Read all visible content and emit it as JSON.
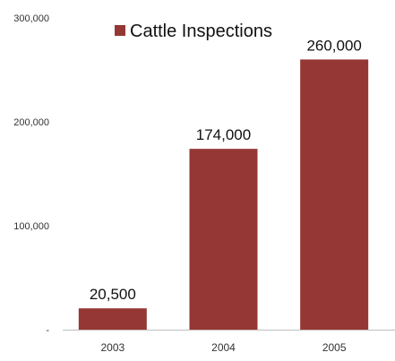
{
  "chart_data": {
    "type": "bar",
    "categories": [
      "2003",
      "2004",
      "2005"
    ],
    "series": [
      {
        "name": "Cattle Inspections",
        "values": [
          20500,
          174000,
          260000
        ]
      }
    ],
    "data_labels": [
      "20,500",
      "174,000",
      "260,000"
    ],
    "ylim": [
      0,
      300000
    ],
    "yticks": [
      0,
      100000,
      200000,
      300000
    ],
    "ytick_labels": [
      "-",
      "100,000",
      "200,000",
      "300,000"
    ],
    "grid": false,
    "legend": "top-center",
    "bar_color": "#953735"
  }
}
